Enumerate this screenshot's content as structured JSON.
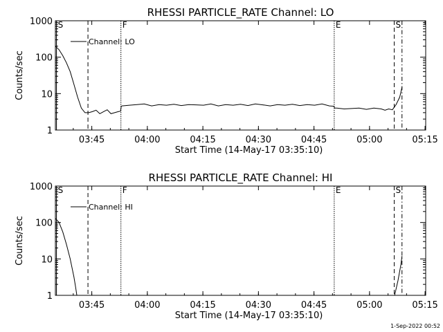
{
  "footer": {
    "timestamp": "1-Sep-2022 00:52"
  },
  "chart_data": [
    {
      "type": "line",
      "title": "RHESSI PARTICLE_RATE Channel: LO",
      "xlabel": "Start Time (14-May-17 03:35:10)",
      "ylabel": "Counts/sec",
      "yscale": "log",
      "ylim": [
        1,
        1000
      ],
      "xlim_minutes": [
        0,
        100
      ],
      "x_ticks": [
        "03:45",
        "04:00",
        "04:15",
        "04:30",
        "04:45",
        "05:00",
        "05:15"
      ],
      "y_ticks": [
        "1",
        "10",
        "100",
        "1000"
      ],
      "legend": {
        "label": "Channel: LO",
        "placement": "top-left"
      },
      "markers": [
        {
          "label": "S",
          "minute": 0.3,
          "style": "solid"
        },
        {
          "label": "",
          "minute": 8.8,
          "style": "dashed"
        },
        {
          "label": "F",
          "minute": 17.7,
          "style": "dotted"
        },
        {
          "label": "E",
          "minute": 75.3,
          "style": "dotted"
        },
        {
          "label": "S",
          "minute": 91.5,
          "style": "dashed"
        },
        {
          "label": "",
          "minute": 93.6,
          "style": "dashdot"
        }
      ],
      "series": [
        {
          "x": [
            0,
            1,
            2,
            3,
            4,
            5,
            6,
            7,
            8,
            9,
            10,
            11,
            12,
            13,
            14,
            15,
            16,
            17,
            17.6,
            17.8,
            18,
            20,
            22,
            24,
            26,
            28,
            30,
            32,
            34,
            36,
            38,
            40,
            42,
            44,
            46,
            48,
            50,
            52,
            54,
            56,
            58,
            60,
            62,
            64,
            66,
            68,
            70,
            72,
            74,
            75.2,
            75.4,
            76,
            78,
            80,
            82,
            84,
            86,
            88,
            89,
            90,
            91,
            92,
            93,
            93.6
          ],
          "y": [
            200,
            160,
            110,
            70,
            40,
            18,
            8,
            4,
            3,
            3,
            3.2,
            3.5,
            2.8,
            3.2,
            3.6,
            2.8,
            3,
            3.2,
            3.3,
            4.5,
            4.6,
            4.8,
            5,
            5.2,
            4.6,
            5,
            4.8,
            5.1,
            4.7,
            5,
            4.9,
            4.8,
            5.2,
            4.6,
            5,
            4.8,
            5.1,
            4.7,
            5.2,
            4.9,
            4.6,
            5,
            4.8,
            5.1,
            4.7,
            5,
            4.8,
            5.2,
            4.6,
            4.5,
            4,
            4,
            3.8,
            3.9,
            4,
            3.7,
            4,
            3.8,
            3.5,
            3.8,
            3.6,
            5,
            8,
            15
          ]
        }
      ]
    },
    {
      "type": "line",
      "title": "RHESSI PARTICLE_RATE Channel: HI",
      "xlabel": "Start Time (14-May-17 03:35:10)",
      "ylabel": "Counts/sec",
      "yscale": "log",
      "ylim": [
        1,
        1000
      ],
      "xlim_minutes": [
        0,
        100
      ],
      "x_ticks": [
        "03:45",
        "04:00",
        "04:15",
        "04:30",
        "04:45",
        "05:00",
        "05:15"
      ],
      "y_ticks": [
        "1",
        "10",
        "100",
        "1000"
      ],
      "legend": {
        "label": "Channel: HI",
        "placement": "top-left"
      },
      "markers": [
        {
          "label": "S",
          "minute": 0.3,
          "style": "solid"
        },
        {
          "label": "",
          "minute": 8.8,
          "style": "dashed"
        },
        {
          "label": "F",
          "minute": 17.7,
          "style": "dotted"
        },
        {
          "label": "E",
          "minute": 75.3,
          "style": "dotted"
        },
        {
          "label": "S",
          "minute": 91.5,
          "style": "dashed"
        },
        {
          "label": "",
          "minute": 93.6,
          "style": "dashdot"
        }
      ],
      "series": [
        {
          "x": [
            0,
            1,
            2,
            3,
            4,
            5,
            5.5,
            5.8
          ],
          "y": [
            130,
            100,
            55,
            25,
            10,
            3.2,
            1.6,
            1
          ],
          "extra_segments": [
            {
              "x": [
                91.6,
                92.5,
                93.3,
                93.6
              ],
              "y": [
                1,
                2.5,
                7,
                12
              ]
            }
          ]
        }
      ]
    }
  ]
}
